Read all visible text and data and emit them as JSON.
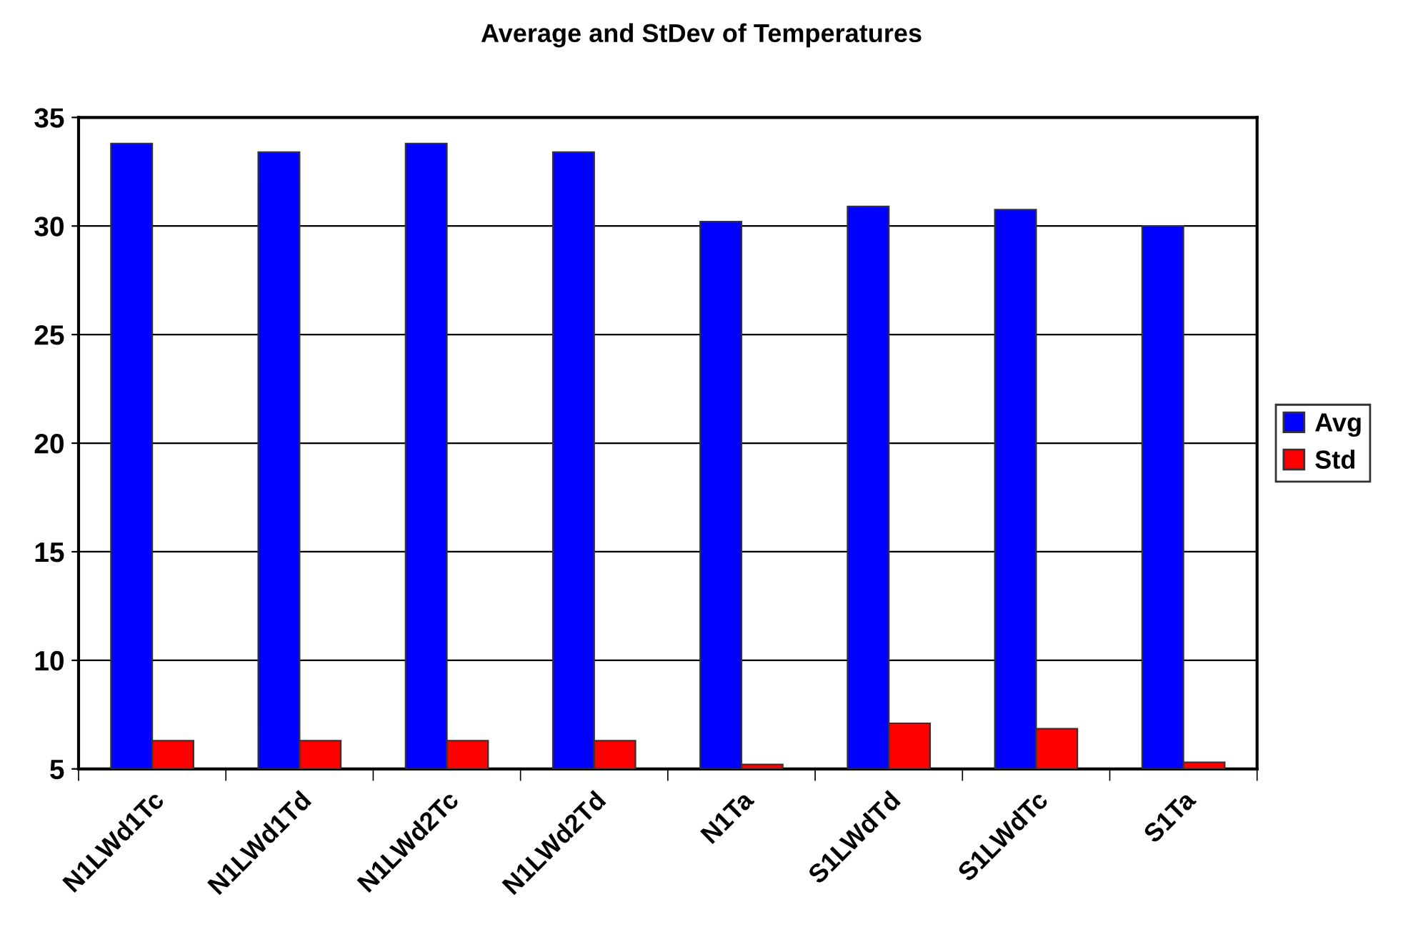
{
  "chart_data": {
    "type": "bar",
    "title": "Average and StDev of Temperatures",
    "categories": [
      "N1LWd1Tc",
      "N1LWd1Td",
      "N1LWd2Tc",
      "N1LWd2Td",
      "N1Ta",
      "S1LWdTd",
      "S1LWdTc",
      "S1Ta"
    ],
    "series": [
      {
        "name": "Avg",
        "color": "#0000ff",
        "values": [
          33.8,
          33.4,
          33.8,
          33.4,
          30.2,
          30.9,
          30.75,
          30.0
        ]
      },
      {
        "name": "Std",
        "color": "#ff0000",
        "values": [
          6.3,
          6.3,
          6.3,
          6.3,
          5.2,
          7.1,
          6.85,
          5.3
        ]
      }
    ],
    "ylim": [
      5,
      35
    ],
    "yticks": [
      5,
      10,
      15,
      20,
      25,
      30,
      35
    ],
    "grid": "y",
    "legend": "right"
  }
}
